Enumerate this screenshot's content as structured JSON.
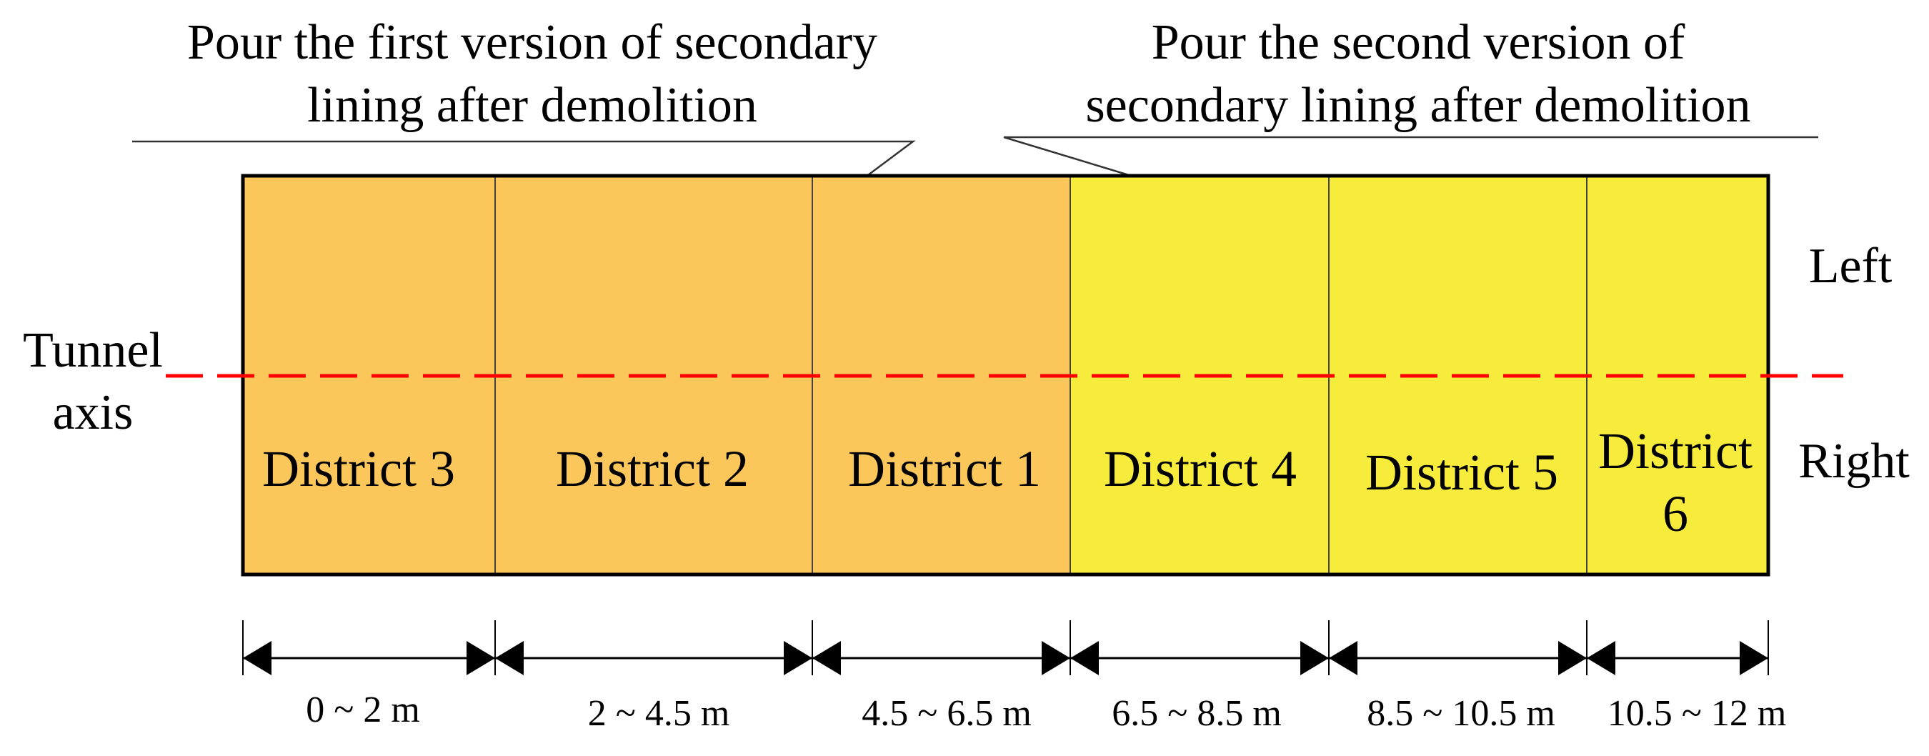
{
  "callouts": {
    "first_line1": "Pour the first version of secondary",
    "first_line2": "lining after demolition",
    "second_line1": "Pour the second version of",
    "second_line2": "secondary lining after demolition"
  },
  "axis": {
    "label_line1": "Tunnel",
    "label_line2": "axis",
    "color": "#ff0000"
  },
  "sides": {
    "left": "Left",
    "right": "Right"
  },
  "colors": {
    "first_pour": "#fcc75a",
    "second_pour": "#f7ec3b"
  },
  "districts": [
    {
      "name": "District 3",
      "range": "0 ~ 2 m",
      "pour": "first"
    },
    {
      "name": "District 2",
      "range": "2 ~ 4.5 m",
      "pour": "first"
    },
    {
      "name": "District 1",
      "range": "4.5 ~ 6.5 m",
      "pour": "first"
    },
    {
      "name": "District 4",
      "range": "6.5 ~ 8.5 m",
      "pour": "second"
    },
    {
      "name": "District 5",
      "range": "8.5 ~ 10.5 m",
      "pour": "second"
    },
    {
      "name_line1": "District",
      "name_line2": "6",
      "range": "10.5 ~ 12 m",
      "pour": "second"
    }
  ]
}
